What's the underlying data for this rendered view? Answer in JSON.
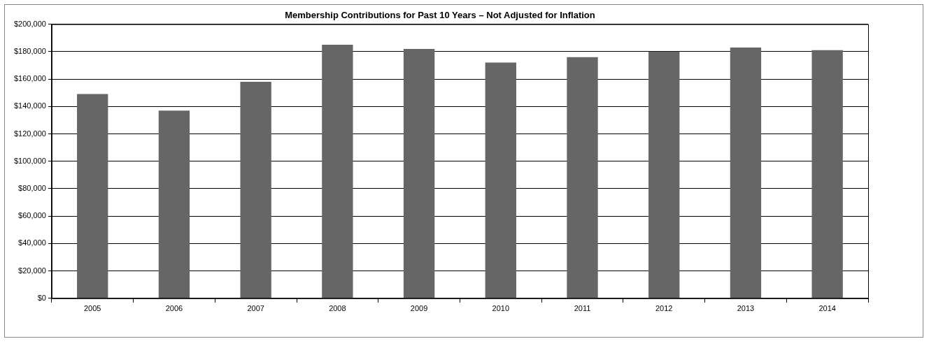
{
  "chart_data": {
    "type": "bar",
    "title": "Membership Contributions for Past 10 Years – Not Adjusted for Inflation",
    "categories": [
      "2005",
      "2006",
      "2007",
      "2008",
      "2009",
      "2010",
      "2011",
      "2012",
      "2013",
      "2014"
    ],
    "values": [
      149000,
      137000,
      158000,
      185000,
      182000,
      172000,
      176000,
      180000,
      183000,
      181000
    ],
    "color": "#666666",
    "ylim": [
      0,
      200000
    ],
    "yticks": [
      {
        "value": 0,
        "label": "$0"
      },
      {
        "value": 20000,
        "label": "$20,000"
      },
      {
        "value": 40000,
        "label": "$40,000"
      },
      {
        "value": 60000,
        "label": "$60,000"
      },
      {
        "value": 80000,
        "label": "$80,000"
      },
      {
        "value": 100000,
        "label": "$100,000"
      },
      {
        "value": 120000,
        "label": "$120,000"
      },
      {
        "value": 140000,
        "label": "$140,000"
      },
      {
        "value": 160000,
        "label": "$160,000"
      },
      {
        "value": 180000,
        "label": "$180,000"
      },
      {
        "value": 200000,
        "label": "$200,000"
      }
    ],
    "grid": "y"
  }
}
